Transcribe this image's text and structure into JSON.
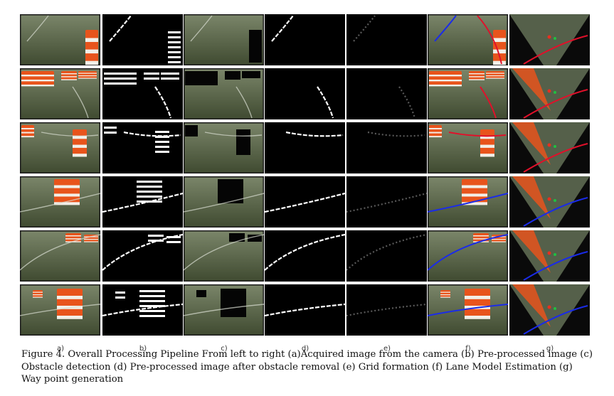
{
  "figure": {
    "column_labels": [
      "a)",
      "b)",
      "c)",
      "d)",
      "e)",
      "f)",
      "g)"
    ],
    "row_count": 6
  },
  "caption": {
    "text": "Figure 4. Overall Processing Pipeline From left to right (a)Acquired image from the camera (b) Pre-processed image (c) Obstacle detection (d) Pre-processed image after obstacle removal (e) Grid formation (f) Lane Model Estimation (g) Way point generation"
  },
  "colors": {
    "grass": "#5c6a46",
    "lane_red": "#e0102a",
    "lane_blue": "#1a2be8",
    "cone_orange": "#e8541c"
  }
}
